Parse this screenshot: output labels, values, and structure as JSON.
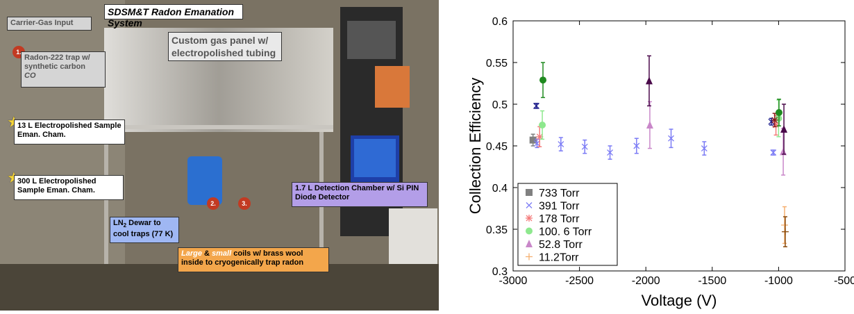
{
  "photo": {
    "labels": {
      "title": "SDSM&T Radon Emanation System",
      "carrier": "Carrier-Gas Input",
      "trap": "Radon-222 trap w/ synthetic carbon",
      "trap_co": "CO",
      "panel": "Custom gas panel w/ electropolished tubing",
      "cham13": "13 L Electropolished Sample Eman. Cham.",
      "cham300": "300 L Electropolished Sample Eman. Cham.",
      "dewar": "LN",
      "dewar_sub": "2",
      "dewar_rest": " Dewar to cool traps (77 K)",
      "coils_large": "Large",
      "coils_amp": " & ",
      "coils_small": "small",
      "coils_rest": " coils w/ brass wool inside to cryogenically trap radon",
      "detect": "1.7 L Detection Chamber w/ Si PIN Diode Detector"
    },
    "markers": {
      "n1": "1.",
      "n2": "2.",
      "n3": "3."
    },
    "icons": {
      "star": "star-icon"
    }
  },
  "chart_data": {
    "type": "scatter",
    "xlabel": "Voltage (V)",
    "ylabel": "Collection Efficiency",
    "xlim": [
      -3000,
      -500
    ],
    "ylim": [
      0.3,
      0.6
    ],
    "xticks": [
      "-3000",
      "-2500",
      "-2000",
      "-1500",
      "-1000",
      "-500"
    ],
    "yticks": [
      "0.3",
      "0.35",
      "0.4",
      "0.45",
      "0.5",
      "0.55",
      "0.6"
    ],
    "legend_position": "bottom-left",
    "series": [
      {
        "name": "733 Torr",
        "marker": "square",
        "color": "#808080",
        "points": [
          {
            "x": -2850,
            "y": 0.457,
            "err": 0.007
          }
        ]
      },
      {
        "name": "391 Torr",
        "marker": "x",
        "color": "#7b7bf5",
        "points": [
          {
            "x": -2820,
            "y": 0.453,
            "err": 0.005
          },
          {
            "x": -2640,
            "y": 0.452,
            "err": 0.008
          },
          {
            "x": -2460,
            "y": 0.449,
            "err": 0.008
          },
          {
            "x": -2270,
            "y": 0.442,
            "err": 0.008
          },
          {
            "x": -2070,
            "y": 0.45,
            "err": 0.009
          },
          {
            "x": -1810,
            "y": 0.459,
            "err": 0.011
          },
          {
            "x": -1560,
            "y": 0.447,
            "err": 0.008
          },
          {
            "x": -1040,
            "y": 0.442,
            "err": 0.003
          }
        ]
      },
      {
        "name": "178 Torr",
        "marker": "asterisk",
        "color": "#f47a7a",
        "points": [
          {
            "x": -2800,
            "y": 0.461,
            "err": 0.012
          },
          {
            "x": -1020,
            "y": 0.475,
            "err": 0.012
          }
        ]
      },
      {
        "name": "100. 6 Torr",
        "marker": "circle",
        "color": "#8ee88e",
        "points": [
          {
            "x": -2780,
            "y": 0.475,
            "err": 0.017
          },
          {
            "x": -1000,
            "y": 0.483,
            "err": 0.022
          }
        ]
      },
      {
        "name": "52.8 Torr",
        "marker": "triangle",
        "color": "#c987c9",
        "points": [
          {
            "x": -1970,
            "y": 0.475,
            "err": 0.028
          },
          {
            "x": -965,
            "y": 0.443,
            "err": 0.028
          }
        ]
      },
      {
        "name": "11.2Torr",
        "marker": "plus",
        "color": "#f5b071",
        "points": [
          {
            "x": -955,
            "y": 0.355,
            "err": 0.022
          }
        ]
      }
    ],
    "overlay_series": [
      {
        "marker": "x",
        "color": "#1a1a8a",
        "points": [
          {
            "x": -2825,
            "y": 0.498,
            "err": 0.003
          },
          {
            "x": -1055,
            "y": 0.479,
            "err": 0.004
          }
        ]
      },
      {
        "marker": "asterisk",
        "color": "#8a1a1a",
        "points": [
          {
            "x": -1030,
            "y": 0.481,
            "err": 0.008
          }
        ]
      },
      {
        "marker": "circle",
        "color": "#1f8a1f",
        "points": [
          {
            "x": -2775,
            "y": 0.529,
            "err": 0.021
          },
          {
            "x": -997,
            "y": 0.49,
            "err": 0.016
          }
        ]
      },
      {
        "marker": "triangle",
        "color": "#4a0a4a",
        "points": [
          {
            "x": -1975,
            "y": 0.528,
            "err": 0.03
          },
          {
            "x": -960,
            "y": 0.47,
            "err": 0.03
          }
        ]
      },
      {
        "marker": "plus",
        "color": "#8a4a0a",
        "points": [
          {
            "x": -950,
            "y": 0.347,
            "err": 0.018
          }
        ]
      }
    ]
  }
}
